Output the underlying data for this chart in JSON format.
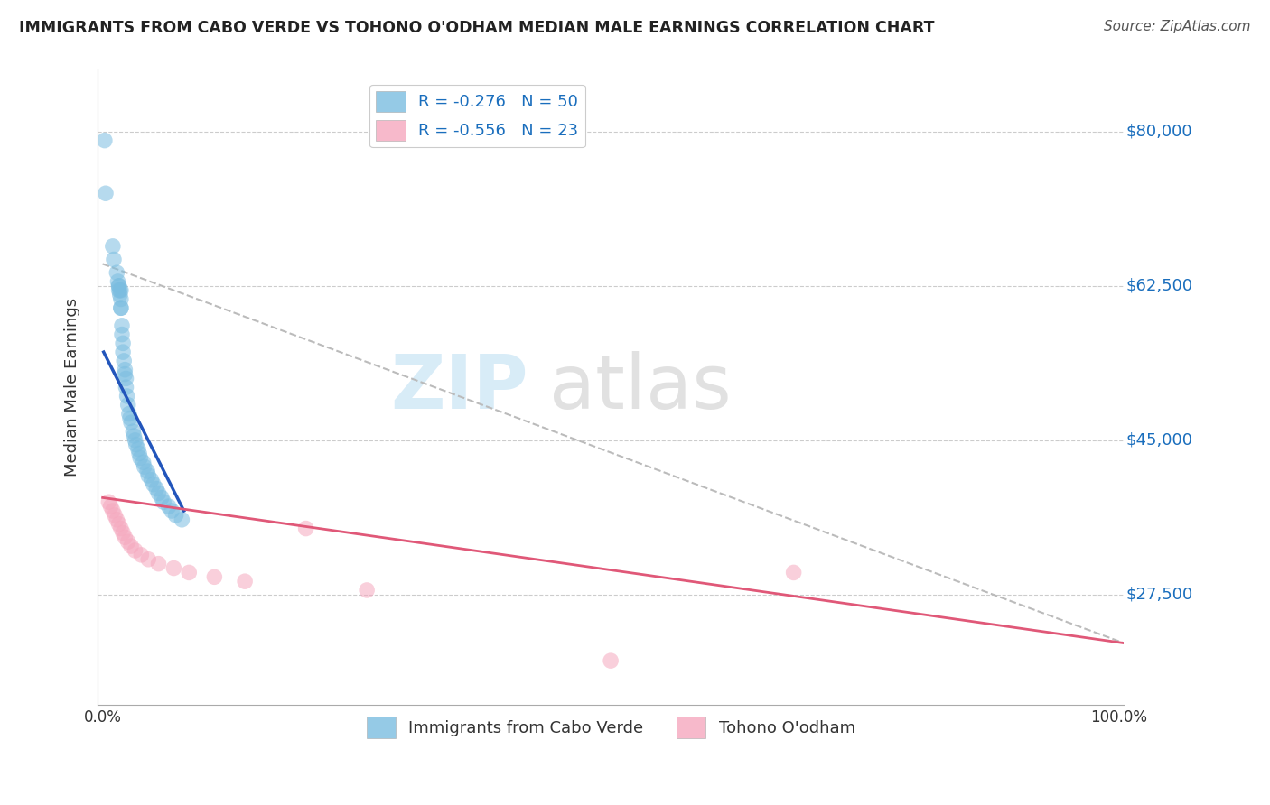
{
  "title": "IMMIGRANTS FROM CABO VERDE VS TOHONO O'ODHAM MEDIAN MALE EARNINGS CORRELATION CHART",
  "source": "Source: ZipAtlas.com",
  "ylabel": "Median Male Earnings",
  "yticklabels": [
    "$80,000",
    "$62,500",
    "$45,000",
    "$27,500"
  ],
  "ytick_values": [
    80000,
    62500,
    45000,
    27500
  ],
  "ymin": 15000,
  "ymax": 87000,
  "xmin": -0.005,
  "xmax": 1.005,
  "color_blue": "#7bbde0",
  "color_pink": "#f5a8be",
  "trendline_blue": "#2255bb",
  "trendline_pink": "#e05878",
  "trendline_dashed": "#bbbbbb",
  "cabo_verde_x": [
    0.002,
    0.003,
    0.01,
    0.011,
    0.014,
    0.015,
    0.016,
    0.016,
    0.016,
    0.017,
    0.017,
    0.018,
    0.018,
    0.018,
    0.018,
    0.019,
    0.019,
    0.02,
    0.02,
    0.021,
    0.022,
    0.022,
    0.023,
    0.023,
    0.024,
    0.025,
    0.026,
    0.027,
    0.028,
    0.03,
    0.031,
    0.032,
    0.033,
    0.035,
    0.036,
    0.037,
    0.04,
    0.041,
    0.044,
    0.045,
    0.048,
    0.05,
    0.053,
    0.055,
    0.058,
    0.06,
    0.065,
    0.068,
    0.072,
    0.078
  ],
  "cabo_verde_y": [
    79000,
    73000,
    67000,
    65500,
    64000,
    63000,
    62500,
    62500,
    62000,
    62000,
    61500,
    62000,
    61000,
    60000,
    60000,
    58000,
    57000,
    56000,
    55000,
    54000,
    53000,
    52500,
    52000,
    51000,
    50000,
    49000,
    48000,
    47500,
    47000,
    46000,
    45500,
    45000,
    44500,
    44000,
    43500,
    43000,
    42500,
    42000,
    41500,
    41000,
    40500,
    40000,
    39500,
    39000,
    38500,
    38000,
    37500,
    37000,
    36500,
    36000
  ],
  "tohono_x": [
    0.006,
    0.008,
    0.01,
    0.012,
    0.014,
    0.016,
    0.018,
    0.02,
    0.022,
    0.025,
    0.028,
    0.032,
    0.038,
    0.045,
    0.055,
    0.07,
    0.085,
    0.11,
    0.14,
    0.2,
    0.26,
    0.5,
    0.68
  ],
  "tohono_y": [
    38000,
    37500,
    37000,
    36500,
    36000,
    35500,
    35000,
    34500,
    34000,
    33500,
    33000,
    32500,
    32000,
    31500,
    31000,
    30500,
    30000,
    29500,
    29000,
    35000,
    28000,
    20000,
    30000
  ],
  "cabo_trendline_x": [
    0.001,
    0.08
  ],
  "cabo_trendline_y": [
    55000,
    37000
  ],
  "tohono_trendline_x": [
    0.0,
    1.005
  ],
  "tohono_trendline_y": [
    38500,
    22000
  ],
  "dashed_trendline_x": [
    0.0,
    1.005
  ],
  "dashed_trendline_y": [
    65000,
    22000
  ]
}
